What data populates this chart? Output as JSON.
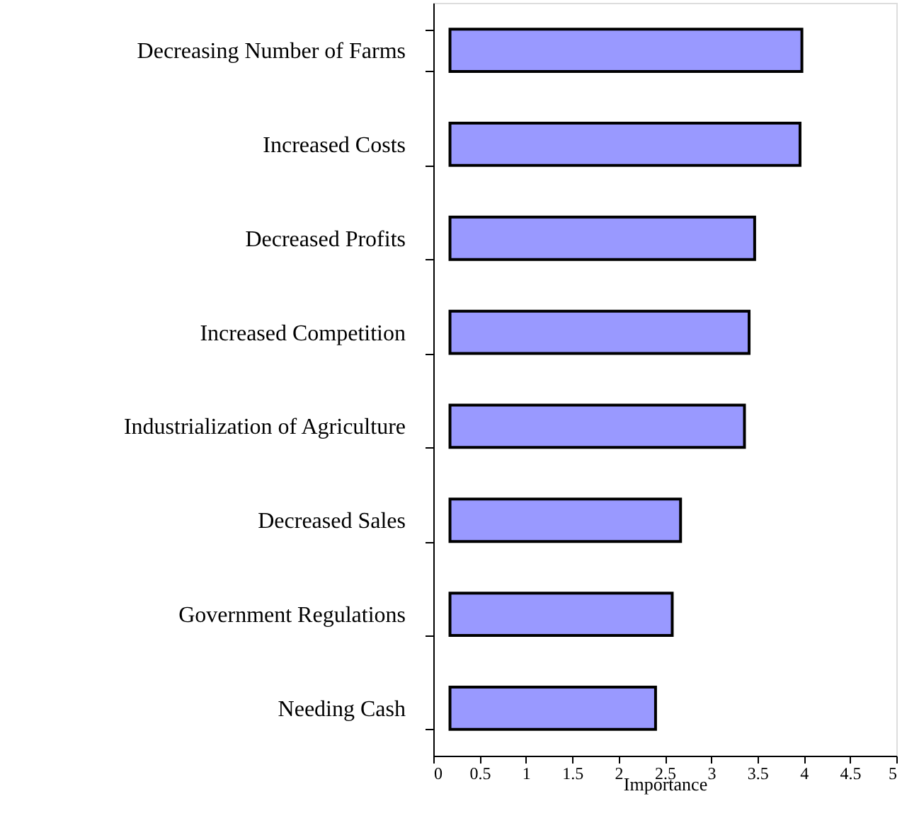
{
  "chart_data": {
    "type": "bar",
    "orientation": "horizontal",
    "xlabel": "Importance",
    "categories": [
      "Decreasing Number of Farms",
      "Increased Costs",
      "Decreased Profits",
      "Increased Competition",
      "Industrialization of Agriculture",
      "Decreased Sales",
      "Government Regulations",
      "Needing Cash"
    ],
    "base": [
      0.18,
      0.18,
      0.18,
      0.18,
      0.18,
      0.18,
      0.18,
      0.18
    ],
    "values": [
      3.8,
      3.78,
      3.29,
      3.23,
      3.18,
      2.49,
      2.4,
      2.22
    ],
    "color": "#9999ff",
    "xlim": [
      0,
      5
    ],
    "xticks": [
      0,
      0.5,
      1,
      1.5,
      2,
      2.5,
      3,
      3.5,
      4,
      4.5,
      5
    ],
    "grid": false
  }
}
